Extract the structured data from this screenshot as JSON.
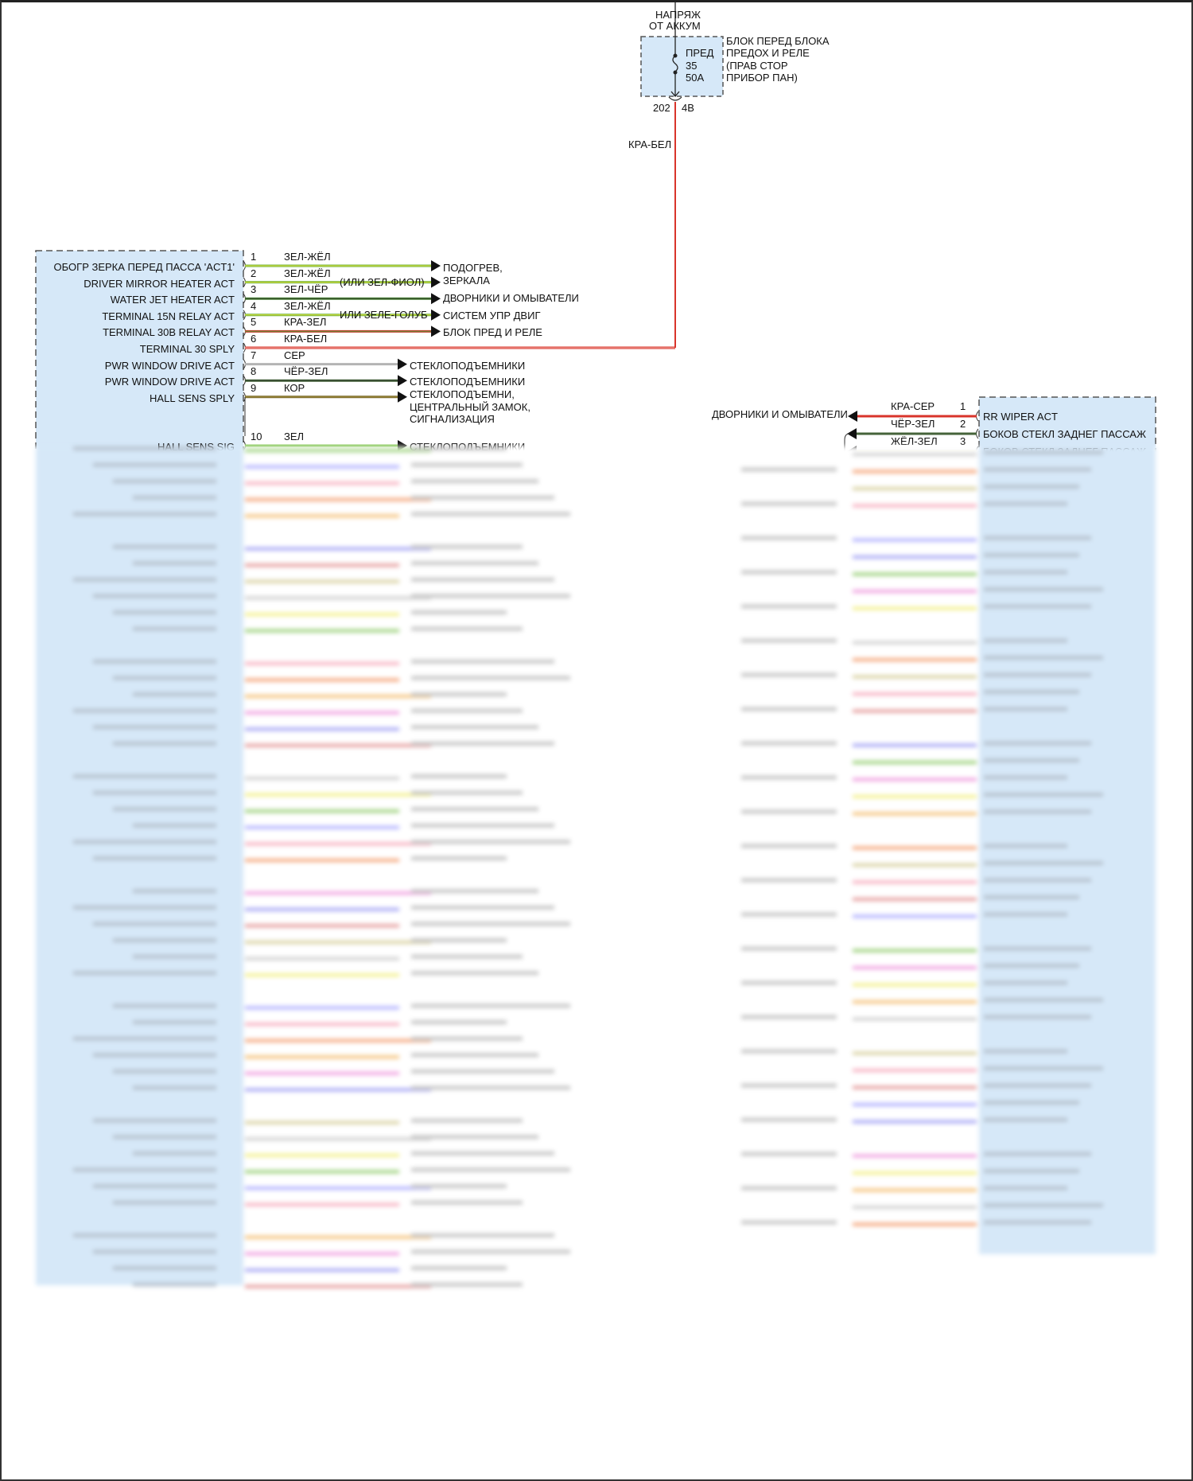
{
  "power_source": {
    "label_line1": "НАПРЯЖ",
    "label_line2": "ОТ АККУМ"
  },
  "fuse_block": {
    "fuse_label": [
      "ПРЕД",
      "35",
      "50A"
    ],
    "block_label": [
      "БЛОК ПЕРЕД БЛОКА",
      "ПРЕДОХ И РЕЛЕ",
      "(ПРАВ СТОР",
      "ПРИБОР ПАН)"
    ],
    "connector_left": "202",
    "connector_right": "4B",
    "wire_color": "КРА-БЕЛ"
  },
  "left_connector": {
    "pins": [
      {
        "pin": "1",
        "signal": "ОБОГР ЗЕРКА ПЕРЕД ПАССА 'ACT1'",
        "wire": "ЗЕЛ-ЖЁЛ",
        "color": "#6cb33f",
        "stripe": "#e8e23a"
      },
      {
        "pin": "2",
        "signal": "DRIVER MIRROR HEATER ACT",
        "wire": "ЗЕЛ-ЖЁЛ",
        "note": "(ИЛИ ЗЕЛ-ФИОЛ)",
        "color": "#6cb33f",
        "stripe": "#e8e23a"
      },
      {
        "pin": "3",
        "signal": "WATER JET HEATER ACT",
        "wire": "ЗЕЛ-ЧЁР",
        "color": "#4f8a3a",
        "stripe": "#2a3a22"
      },
      {
        "pin": "4",
        "signal": "TERMINAL 15N RELAY ACT",
        "wire": "ЗЕЛ-ЖЁЛ",
        "note": "ИЛИ ЗЕЛЕ-ГОЛУБ",
        "color": "#6cb33f",
        "stripe": "#e8e23a"
      },
      {
        "pin": "5",
        "signal": "TERMINAL 30B RELAY ACT",
        "wire": "КРА-ЗЕЛ",
        "color": "#c2412c",
        "stripe": "#6a8a3a"
      },
      {
        "pin": "6",
        "signal": "TERMINAL 30 SPLY",
        "wire": "КРА-БЕЛ",
        "color": "#d9342b",
        "stripe": "#f3b0a8"
      },
      {
        "pin": "7",
        "signal": "PWR WINDOW DRIVE ACT",
        "wire": "СЕР",
        "color": "#b5b5b5",
        "stripe": "#b5b5b5"
      },
      {
        "pin": "8",
        "signal": "PWR WINDOW DRIVE ACT",
        "wire": "ЧЁР-ЗЕЛ",
        "color": "#45633a",
        "stripe": "#2f3f2a"
      },
      {
        "pin": "9",
        "signal": "HALL SENS SPLY",
        "wire": "КОР",
        "color": "#7d6b2b",
        "stripe": "#9a8a3a"
      },
      {
        "pin": "10",
        "signal": "HALL SENS SIG",
        "wire": "ЗЕЛ",
        "color": "#7cc24a",
        "stripe": "#7cc24a"
      }
    ],
    "destinations": {
      "heater_mirrors": [
        "ПОДОГРЕВ,",
        "ЗЕРКАЛА"
      ],
      "wipers": "ДВОРНИКИ И ОМЫВАТЕЛИ",
      "engine_control": "СИСТЕМ УПР ДВИГ",
      "fuse_relay_block": "БЛОК ПРЕД И РЕЛЕ",
      "window_lifters_1": "СТЕКЛОПОДЪЕМНИКИ",
      "window_lifters_2": "СТЕКЛОПОДЪЕМНИКИ",
      "window_central_alarm": [
        "СТЕКЛОПОДЪЕМНИ,",
        "ЦЕНТРАЛЬНЫЙ ЗАМОК,",
        "СИГНАЛИЗАЦИЯ"
      ],
      "window_lifters_3": "СТЕКЛОПОДЪЕМНИКИ"
    }
  },
  "right_connector": {
    "pins": [
      {
        "pin": "1",
        "signal": "RR WIPER ACT",
        "wire": "КРА-СЕР",
        "color": "#d9342b"
      },
      {
        "pin": "2",
        "signal": "БОКОВ СТЕКЛ ЗАДНЕГ ПАССАЖ",
        "wire": "ЧЁР-ЗЕЛ",
        "color": "#45633a"
      },
      {
        "pin": "3",
        "signal": "БОКОВ СТЕКЛ ЗАДНЕГ ПАССАЖ",
        "wire": "ЖЁЛ-ЗЕЛ",
        "color": "#d8dc4a"
      }
    ],
    "destination_wipers": "ДВОРНИКИ И ОМЫВАТЕЛИ"
  },
  "colors": {
    "connector_fill": "#d6e8f8",
    "connector_border": "#555555",
    "supply_wire": "#d9342b"
  }
}
